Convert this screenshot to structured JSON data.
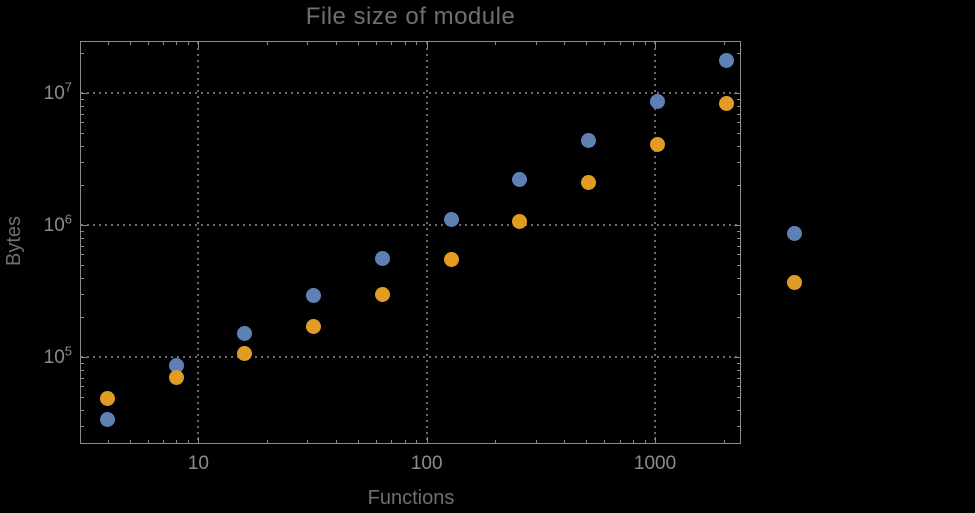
{
  "title": "File size of module",
  "colors": {
    "background": "#000000",
    "frame": "#8b8b8b",
    "grid": "#6b6b6b",
    "tick_label": "#8c8c8c",
    "title_text": "#6f6f6f",
    "axis_label_text": "#6f6f6f",
    "series_blue": "#5E81B5",
    "series_orange": "#E19C24"
  },
  "chart_data": {
    "type": "scatter",
    "title": "File size of module",
    "xlabel": "Functions",
    "ylabel": "Bytes",
    "xscale": "log",
    "yscale": "log",
    "xlim": [
      3.03,
      2380
    ],
    "ylim": [
      22000,
      24800000
    ],
    "legend": "none",
    "grid": {
      "style": "dotted",
      "x_values": [
        10,
        100,
        1000
      ],
      "y_values": [
        100000,
        1000000,
        10000000
      ]
    },
    "x_ticks": [
      {
        "value": 10,
        "label": "10"
      },
      {
        "value": 100,
        "label": "100"
      },
      {
        "value": 1000,
        "label": "1000"
      }
    ],
    "y_ticks": [
      {
        "value": 100000,
        "base": "10",
        "exp": "5"
      },
      {
        "value": 1000000,
        "base": "10",
        "exp": "6"
      },
      {
        "value": 10000000,
        "base": "10",
        "exp": "7"
      }
    ],
    "series": [
      {
        "name": "blue-series",
        "color": "#5E81B5",
        "marker": "circle",
        "points": [
          [
            4,
            34000
          ],
          [
            8,
            86000
          ],
          [
            16,
            150000
          ],
          [
            32,
            295000
          ],
          [
            64,
            560000
          ],
          [
            128,
            1110000
          ],
          [
            256,
            2200000
          ],
          [
            512,
            4400000
          ],
          [
            1024,
            8700000
          ],
          [
            2048,
            17500000
          ],
          [
            4096,
            860000
          ]
        ]
      },
      {
        "name": "orange-series",
        "color": "#E19C24",
        "marker": "circle",
        "points": [
          [
            4,
            49000
          ],
          [
            8,
            70000
          ],
          [
            16,
            107000
          ],
          [
            32,
            172000
          ],
          [
            64,
            300000
          ],
          [
            128,
            545000
          ],
          [
            256,
            1060000
          ],
          [
            512,
            2120000
          ],
          [
            1024,
            4100000
          ],
          [
            2048,
            8300000
          ],
          [
            4096,
            365000
          ]
        ]
      }
    ]
  }
}
